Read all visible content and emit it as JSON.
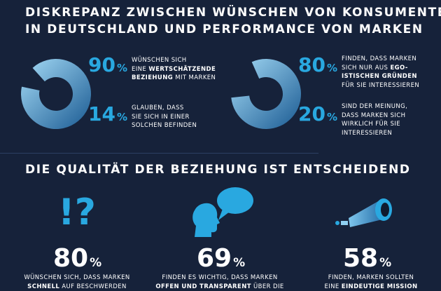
{
  "header": {
    "line1": "DISKREPANZ ZWISCHEN WÜNSCHEN VON KONSUMENTEN",
    "line2": "IN DEUTSCHLAND UND PERFORMANCE VON MARKEN"
  },
  "section1": {
    "left": {
      "gauge_fraction": 0.9,
      "top": {
        "value": "90",
        "unit": "%",
        "desc_line1": "WÜNSCHEN SICH",
        "desc_line2_pre": "EINE ",
        "desc_line2_bold": "WERTSCHÄTZENDE",
        "desc_line3_bold": "BEZIEHUNG",
        "desc_line3_post": " MIT MARKEN"
      },
      "bottom": {
        "value": "14",
        "unit": "%",
        "desc_line1": "GLAUBEN, DASS",
        "desc_line2": "SIE SICH IN EINER",
        "desc_line3": "SOLCHEN BEFINDEN"
      }
    },
    "right": {
      "gauge_fraction": 0.8,
      "top": {
        "value": "80",
        "unit": "%",
        "desc_line1": "FINDEN, DASS MARKEN",
        "desc_line2_pre": "SICH NUR AUS ",
        "desc_line2_bold": "EGO-",
        "desc_line3_bold": "ISTISCHEN GRÜNDEN",
        "desc_line4": "FÜR SIE INTERESSIEREN"
      },
      "bottom": {
        "value": "20",
        "unit": "%",
        "desc_line1": "SIND DER MEINUNG,",
        "desc_line2": "DASS MARKEN SICH",
        "desc_line3": "WIRKLICH FÜR SIE",
        "desc_line4": "INTERESSIEREN"
      }
    }
  },
  "section2": {
    "title": "DIE QUALITÄT DER BEZIEHUNG IST ENTSCHEIDEND",
    "col1": {
      "icon_text": "!?",
      "value": "80",
      "unit": "%",
      "desc_line1": "WÜNSCHEN SICH, DASS MARKEN",
      "desc_line2_bold": "SCHNELL",
      "desc_line2_post": " AUF BESCHWERDEN"
    },
    "col2": {
      "value": "69",
      "unit": "%",
      "desc_line1": "FINDEN ES WICHTIG, DASS MARKEN",
      "desc_line2_bold": "OFFEN UND TRANSPARENT",
      "desc_line2_post": " ÜBER DIE"
    },
    "col3": {
      "value": "58",
      "unit": "%",
      "desc_line1": "FINDEN, MARKEN SOLLTEN",
      "desc_line2_pre": "EINE ",
      "desc_line2_bold": "EINDEUTIGE MISSION"
    }
  },
  "colors": {
    "background": "#16223a",
    "accent": "#29a8e0",
    "gauge_light": "#8fd0f2",
    "gauge_dark": "#1d5f96"
  }
}
